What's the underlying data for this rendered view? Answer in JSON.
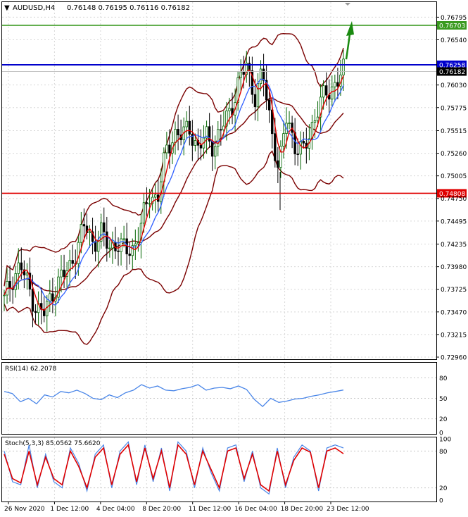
{
  "header": {
    "symbol": "AUDUSD,H4",
    "ohlc": "0.76148 0.76195 0.76116 0.76182",
    "dropdown_glyph": "▼"
  },
  "rsi_panel": {
    "label": "RSI(14) 62.2078"
  },
  "stoch_panel": {
    "label": "Stoch(5,3,3) 85.0562 75.6620"
  },
  "colors": {
    "bullish_candle": "#006400",
    "bearish_candle": "#000000",
    "bollinger": "#7a0000",
    "ma_fast": "#e00000",
    "ma_slow": "#3060ff",
    "resistance_line": "#3a9a20",
    "pivot_line": "#0000cc",
    "support_line": "#e00000",
    "current_price_label": "#000000",
    "rsi_line": "#4a86e8",
    "stoch_main": "#4a86e8",
    "stoch_signal": "#e00000",
    "arrow": "#1a8a10"
  },
  "chart_data": [
    {
      "type": "candlestick",
      "title": "AUDUSD,H4",
      "y_ticks": [
        "0.76795",
        "0.76540",
        "0.76030",
        "0.75775",
        "0.75515",
        "0.75260",
        "0.75005",
        "0.74750",
        "0.74495",
        "0.74235",
        "0.73980",
        "0.73725",
        "0.73470",
        "0.73215",
        "0.72960"
      ],
      "ylim": [
        0.7296,
        0.7683
      ],
      "x_ticks": [
        "26 Nov 2020",
        "1 Dec 12:00",
        "4 Dec 04:00",
        "8 Dec 20:00",
        "11 Dec 12:00",
        "16 Dec 04:00",
        "18 Dec 20:00",
        "23 Dec 12:00"
      ],
      "price_levels": [
        {
          "name": "resistance",
          "value": 0.76703,
          "label": "0.76703",
          "color": "#3a9a20"
        },
        {
          "name": "pivot",
          "value": 0.76258,
          "label": "0.76258",
          "color": "#0000cc"
        },
        {
          "name": "current",
          "value": 0.76182,
          "label": "0.76182",
          "color": "#000000"
        },
        {
          "name": "support",
          "value": 0.74808,
          "label": "0.74808",
          "color": "#e00000"
        }
      ],
      "arrow_direction": "up",
      "close_path": [
        0.736,
        0.7385,
        0.74,
        0.7375,
        0.735,
        0.7345,
        0.737,
        0.7385,
        0.7395,
        0.742,
        0.7445,
        0.7425,
        0.7435,
        0.742,
        0.7425,
        0.7415,
        0.742,
        0.7445,
        0.748,
        0.7475,
        0.7525,
        0.755,
        0.7545,
        0.7555,
        0.753,
        0.7545,
        0.7535,
        0.7555,
        0.7575,
        0.7605,
        0.7625,
        0.759,
        0.7615,
        0.756,
        0.7505,
        0.757,
        0.7535,
        0.7525,
        0.7555,
        0.758,
        0.7595,
        0.7605,
        0.7618
      ]
    },
    {
      "type": "line",
      "title": "RSI(14) 62.2078",
      "ylim": [
        0,
        100
      ],
      "y_ticks": [
        "80",
        "50",
        "20",
        "0"
      ],
      "series": [
        {
          "name": "RSI(14)",
          "values": [
            60,
            57,
            45,
            50,
            42,
            55,
            52,
            60,
            58,
            62,
            57,
            50,
            48,
            55,
            51,
            58,
            62,
            70,
            65,
            68,
            62,
            61,
            64,
            66,
            70,
            62,
            65,
            66,
            64,
            68,
            63,
            48,
            38,
            50,
            44,
            46,
            49,
            50,
            53,
            55,
            58,
            60,
            62.2
          ]
        }
      ]
    },
    {
      "type": "line",
      "title": "Stoch(5,3,3) 85.0562 75.6620",
      "ylim": [
        0,
        100
      ],
      "y_ticks": [
        "100",
        "80",
        "20",
        "0"
      ],
      "series": [
        {
          "name": "Main",
          "values": [
            80,
            30,
            25,
            90,
            20,
            75,
            30,
            20,
            85,
            60,
            15,
            75,
            90,
            20,
            80,
            95,
            25,
            90,
            30,
            85,
            15,
            95,
            80,
            20,
            85,
            45,
            15,
            85,
            90,
            30,
            80,
            20,
            10,
            85,
            20,
            70,
            90,
            80,
            15,
            85,
            90,
            85
          ]
        },
        {
          "name": "Signal",
          "values": [
            75,
            35,
            28,
            80,
            25,
            70,
            35,
            25,
            80,
            55,
            20,
            70,
            85,
            25,
            75,
            90,
            30,
            85,
            35,
            80,
            20,
            90,
            75,
            25,
            80,
            50,
            20,
            80,
            85,
            35,
            75,
            25,
            15,
            80,
            25,
            65,
            85,
            78,
            20,
            80,
            85,
            75.7
          ]
        }
      ]
    }
  ]
}
